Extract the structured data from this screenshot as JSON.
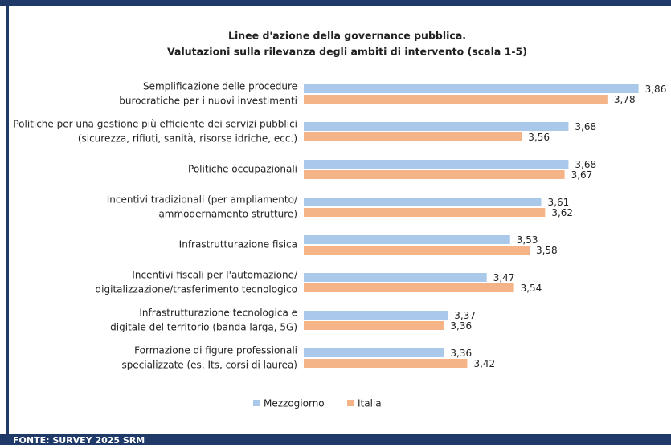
{
  "chart_data": {
    "type": "hbar",
    "title": [
      "Linee d'azione della governance pubblica.",
      "Valutazioni sulla rilevanza degli ambiti di intervento (scala 1-5)"
    ],
    "source": "FONTE: SURVEY 2025 SRM",
    "categories": [
      [
        "Semplificazione delle procedure",
        "burocratiche per i nuovi investimenti"
      ],
      [
        "Politiche per una gestione più efficiente dei servizi pubblici",
        "(sicurezza, rifiuti, sanità, risorse idriche, ecc.)"
      ],
      [
        "Politiche occupazionali"
      ],
      [
        "Incentivi tradizionali (per ampliamento/",
        "ammodernamento strutture)"
      ],
      [
        "Infrastrutturazione fisica"
      ],
      [
        "Incentivi fiscali per l'automazione/",
        "digitalizzazione/trasferimento tecnologico"
      ],
      [
        "Infrastrutturazione tecnologica e",
        "digitale del territorio (banda larga, 5G)"
      ],
      [
        "Formazione di figure professionali",
        "specializzate (es. Its, corsi di laurea)"
      ]
    ],
    "series": [
      {
        "name": "Mezzogiorno",
        "color": "#a9c8ea",
        "values": [
          3.86,
          3.68,
          3.68,
          3.61,
          3.53,
          3.47,
          3.37,
          3.36
        ],
        "value_labels": [
          "3,86",
          "3,68",
          "3,68",
          "3,61",
          "3,53",
          "3,47",
          "3,37",
          "3,36"
        ]
      },
      {
        "name": "Italia",
        "color": "#f5b488",
        "values": [
          3.78,
          3.56,
          3.67,
          3.62,
          3.58,
          3.54,
          3.36,
          3.42
        ],
        "value_labels": [
          "3,78",
          "3,56",
          "3,67",
          "3,62",
          "3,58",
          "3,54",
          "3,36",
          "3,42"
        ]
      }
    ],
    "xlim": [
      3,
      3.9
    ]
  }
}
